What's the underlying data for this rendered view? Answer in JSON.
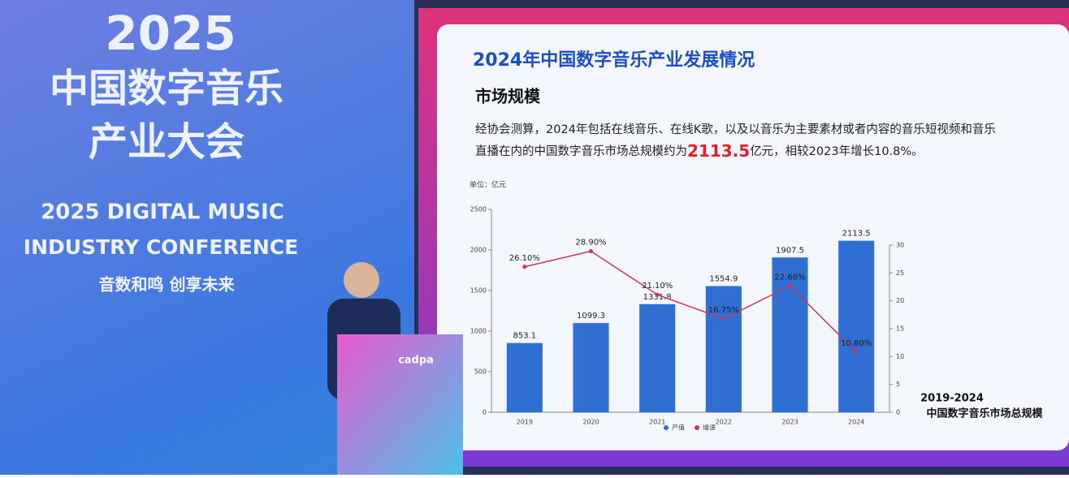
{
  "banner": {
    "year": "2025",
    "title_line1": "中国数字音乐",
    "title_line2": "产业大会",
    "english_line1": "2025 DIGITAL MUSIC",
    "english_line2": "INDUSTRY CONFERENCE",
    "slogan": "音数和鸣 创享未来",
    "podium_logo": "cadpa"
  },
  "slide": {
    "heading": "2024年中国数字音乐产业发展情况",
    "subheading": "市场规模",
    "text_line1": "经协会测算，2024年包括在线音乐、在线K歌，以及以音乐为主要素材或者内容的音乐短视频和音乐",
    "text_line2_pre": "直播在内的中国数字音乐市场总规模约为",
    "highlight": "2113.5",
    "text_line2_post": "亿元，相较2023年增长10.8%。",
    "caption_line1": "2019-2024",
    "caption_line2": "中国数字音乐市场总规模"
  },
  "chart_data": {
    "type": "bar",
    "unit": "单位：亿元",
    "categories": [
      "2019",
      "2020",
      "2021",
      "2022",
      "2023",
      "2024"
    ],
    "series": [
      {
        "name": "产值",
        "color": "#2f6fd3",
        "values": [
          853.1,
          1099.3,
          1331.8,
          1554.9,
          1907.5,
          2113.5
        ]
      },
      {
        "name": "增速",
        "color": "#c0395a",
        "axis": "y2",
        "values": [
          26.1,
          28.9,
          21.1,
          16.75,
          22.68,
          10.8
        ],
        "value_labels": [
          "26.10%",
          "28.90%",
          "21.10%",
          "16.75%",
          "22.68%",
          "10.80%"
        ]
      }
    ],
    "ylim": [
      0,
      2500
    ],
    "yticks": [
      0,
      500,
      1000,
      1500,
      2000,
      2500
    ],
    "y2lim": [
      0,
      30
    ],
    "y2ticks": [
      0,
      5,
      10,
      15,
      20,
      25,
      30
    ]
  }
}
